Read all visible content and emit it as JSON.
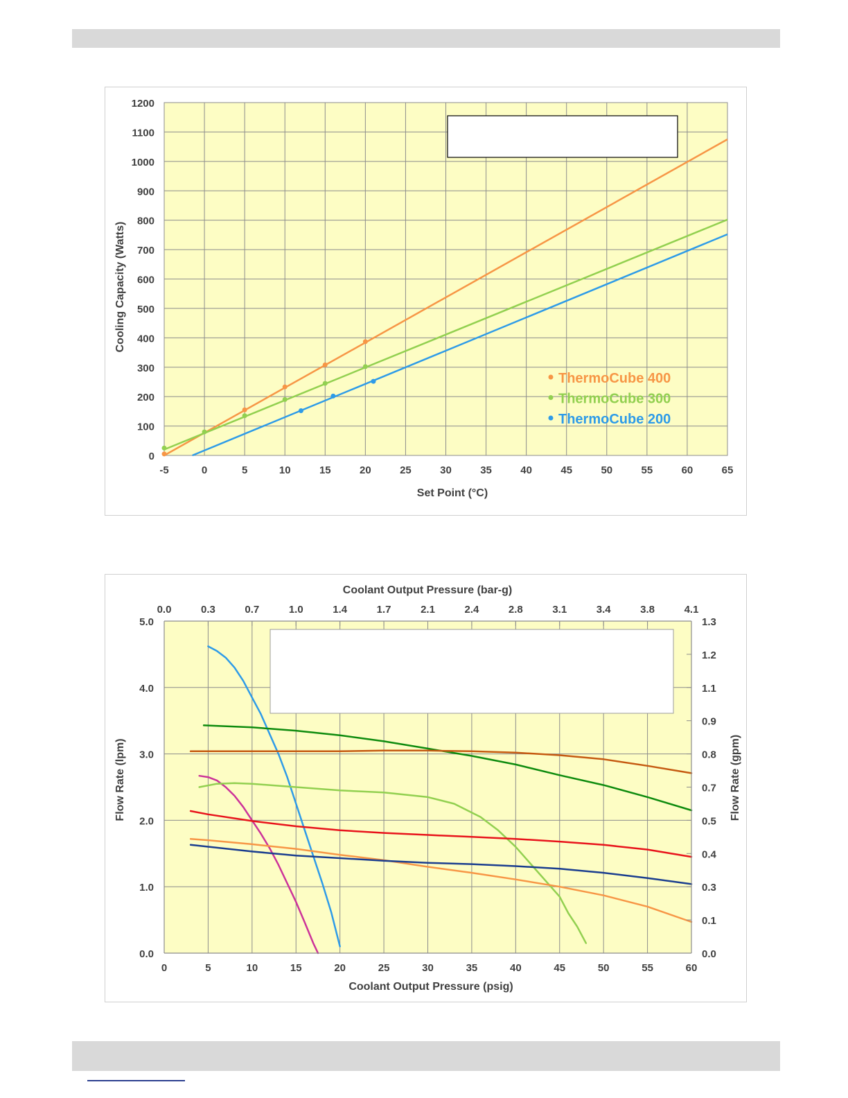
{
  "chart_data": [
    {
      "type": "scatter",
      "title": "",
      "xlabel": "Set Point (°C)",
      "ylabel": "Cooling Capacity (Watts)",
      "xlim": [
        -5,
        65
      ],
      "ylim": [
        0,
        1200
      ],
      "x_ticks": [
        -5,
        0,
        5,
        10,
        15,
        20,
        25,
        30,
        35,
        40,
        45,
        50,
        55,
        60,
        65
      ],
      "y_ticks": [
        0,
        100,
        200,
        300,
        400,
        500,
        600,
        700,
        800,
        900,
        1000,
        1100,
        1200
      ],
      "grid": true,
      "legend_position": "bottom-right",
      "background": "#fdfdc4",
      "series": [
        {
          "name": "ThermoCube 400",
          "color": "#f79646",
          "points": [
            [
              -5,
              5
            ],
            [
              5,
              155
            ],
            [
              10,
              233
            ],
            [
              15,
              308
            ],
            [
              20,
              387
            ]
          ],
          "trendline": [
            [
              -5,
              0
            ],
            [
              65,
              1075
            ]
          ]
        },
        {
          "name": "ThermoCube 300",
          "color": "#92d050",
          "points": [
            [
              -5,
              25
            ],
            [
              0,
              80
            ],
            [
              5,
              135
            ],
            [
              10,
              190
            ],
            [
              15,
              245
            ],
            [
              20,
              302
            ]
          ],
          "trendline": [
            [
              -5,
              20
            ],
            [
              65,
              802
            ]
          ]
        },
        {
          "name": "ThermoCube 200",
          "color": "#2e9be8",
          "points": [
            [
              12,
              152
            ],
            [
              16,
              202
            ],
            [
              21,
              252
            ]
          ],
          "trendline": [
            [
              -1.5,
              0
            ],
            [
              65,
              752
            ]
          ]
        }
      ]
    },
    {
      "type": "line",
      "title": "",
      "xlabel": "Coolant Output Pressure (psig)",
      "x2label": "Coolant Output Pressure (bar-g)",
      "ylabel": "Flow Rate (lpm)",
      "y2label": "Flow Rate (gpm)",
      "xlim": [
        0,
        60
      ],
      "ylim": [
        0,
        5
      ],
      "x_ticks": [
        0,
        5,
        10,
        15,
        20,
        25,
        30,
        35,
        40,
        45,
        50,
        55,
        60
      ],
      "x2_ticks": [
        "0.0",
        "0.3",
        "0.7",
        "1.0",
        "1.4",
        "1.7",
        "2.1",
        "2.4",
        "2.8",
        "3.1",
        "3.4",
        "3.8",
        "4.1"
      ],
      "y_ticks": [
        "0.0",
        "1.0",
        "2.0",
        "3.0",
        "4.0",
        "5.0"
      ],
      "y2_ticks": [
        "0.0",
        "0.1",
        "0.3",
        "0.4",
        "0.5",
        "0.7",
        "0.8",
        "0.9",
        "1.1",
        "1.2",
        "1.3"
      ],
      "grid": true,
      "background": "#fdfdc4",
      "series": [
        {
          "name": "",
          "color": "#2e9be8",
          "points": [
            [
              5,
              4.62
            ],
            [
              6,
              4.55
            ],
            [
              7,
              4.45
            ],
            [
              8,
              4.3
            ],
            [
              9,
              4.1
            ],
            [
              10,
              3.85
            ],
            [
              11,
              3.6
            ],
            [
              12,
              3.3
            ],
            [
              13,
              3.0
            ],
            [
              14,
              2.65
            ],
            [
              15,
              2.25
            ],
            [
              16,
              1.85
            ],
            [
              17,
              1.45
            ],
            [
              18,
              1.05
            ],
            [
              19,
              0.62
            ],
            [
              20,
              0.1
            ]
          ]
        },
        {
          "name": "",
          "color": "#cc3399",
          "points": [
            [
              4,
              2.67
            ],
            [
              5,
              2.65
            ],
            [
              6,
              2.6
            ],
            [
              7,
              2.5
            ],
            [
              8,
              2.37
            ],
            [
              9,
              2.2
            ],
            [
              10,
              2.0
            ],
            [
              11,
              1.8
            ],
            [
              12,
              1.58
            ],
            [
              13,
              1.33
            ],
            [
              14,
              1.05
            ],
            [
              15,
              0.77
            ],
            [
              16,
              0.46
            ],
            [
              17,
              0.14
            ],
            [
              17.5,
              0.0
            ]
          ]
        },
        {
          "name": "",
          "color": "#92d050",
          "points": [
            [
              4,
              2.5
            ],
            [
              6,
              2.55
            ],
            [
              8,
              2.56
            ],
            [
              10,
              2.55
            ],
            [
              15,
              2.5
            ],
            [
              20,
              2.45
            ],
            [
              25,
              2.42
            ],
            [
              30,
              2.35
            ],
            [
              33,
              2.25
            ],
            [
              36,
              2.05
            ],
            [
              38,
              1.85
            ],
            [
              40,
              1.6
            ],
            [
              42,
              1.3
            ],
            [
              44,
              1.0
            ],
            [
              45,
              0.85
            ],
            [
              46,
              0.6
            ],
            [
              47,
              0.4
            ],
            [
              48,
              0.15
            ]
          ]
        },
        {
          "name": "",
          "color": "#0e8b0e",
          "points": [
            [
              4.5,
              3.43
            ],
            [
              10,
              3.4
            ],
            [
              15,
              3.35
            ],
            [
              20,
              3.28
            ],
            [
              25,
              3.19
            ],
            [
              30,
              3.08
            ],
            [
              35,
              2.97
            ],
            [
              40,
              2.84
            ],
            [
              45,
              2.68
            ],
            [
              50,
              2.53
            ],
            [
              55,
              2.35
            ],
            [
              60,
              2.15
            ]
          ]
        },
        {
          "name": "",
          "color": "#c55a11",
          "points": [
            [
              3,
              3.04
            ],
            [
              10,
              3.04
            ],
            [
              20,
              3.04
            ],
            [
              25,
              3.05
            ],
            [
              30,
              3.05
            ],
            [
              35,
              3.04
            ],
            [
              40,
              3.02
            ],
            [
              45,
              2.98
            ],
            [
              50,
              2.92
            ],
            [
              55,
              2.82
            ],
            [
              60,
              2.71
            ]
          ]
        },
        {
          "name": "",
          "color": "#e8131b",
          "points": [
            [
              3,
              2.14
            ],
            [
              5,
              2.09
            ],
            [
              10,
              1.99
            ],
            [
              15,
              1.91
            ],
            [
              20,
              1.85
            ],
            [
              25,
              1.81
            ],
            [
              30,
              1.78
            ],
            [
              35,
              1.75
            ],
            [
              40,
              1.72
            ],
            [
              45,
              1.68
            ],
            [
              50,
              1.63
            ],
            [
              55,
              1.56
            ],
            [
              60,
              1.45
            ]
          ]
        },
        {
          "name": "",
          "color": "#f79646",
          "points": [
            [
              3,
              1.72
            ],
            [
              5,
              1.7
            ],
            [
              10,
              1.64
            ],
            [
              15,
              1.57
            ],
            [
              20,
              1.48
            ],
            [
              25,
              1.4
            ],
            [
              30,
              1.3
            ],
            [
              35,
              1.21
            ],
            [
              40,
              1.11
            ],
            [
              45,
              1.0
            ],
            [
              50,
              0.87
            ],
            [
              55,
              0.7
            ],
            [
              60,
              0.47
            ]
          ]
        },
        {
          "name": "",
          "color": "#1a3d8f",
          "points": [
            [
              3,
              1.63
            ],
            [
              10,
              1.53
            ],
            [
              15,
              1.47
            ],
            [
              20,
              1.43
            ],
            [
              25,
              1.39
            ],
            [
              30,
              1.36
            ],
            [
              35,
              1.34
            ],
            [
              40,
              1.31
            ],
            [
              45,
              1.27
            ],
            [
              50,
              1.21
            ],
            [
              55,
              1.13
            ],
            [
              60,
              1.04
            ]
          ]
        }
      ]
    }
  ]
}
